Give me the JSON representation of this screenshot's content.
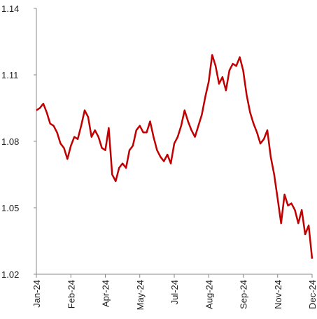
{
  "chart_data": {
    "type": "line",
    "categories": [
      "Jan-24",
      null,
      null,
      null,
      null,
      null,
      null,
      null,
      null,
      null,
      "Feb-24",
      null,
      null,
      null,
      null,
      null,
      null,
      null,
      null,
      null,
      "Apr-24",
      null,
      null,
      null,
      null,
      null,
      null,
      null,
      null,
      null,
      "May-24",
      null,
      null,
      null,
      null,
      null,
      null,
      null,
      null,
      null,
      "Jul-24",
      null,
      null,
      null,
      null,
      null,
      null,
      null,
      null,
      null,
      "Aug-24",
      null,
      null,
      null,
      null,
      null,
      null,
      null,
      null,
      null,
      "Sep-24",
      null,
      null,
      null,
      null,
      null,
      null,
      null,
      null,
      null,
      "Nov-24",
      null,
      null,
      null,
      null,
      null,
      null,
      null,
      null,
      null,
      "Dec-24"
    ],
    "values": [
      1.094,
      1.095,
      1.097,
      1.093,
      1.088,
      1.087,
      1.084,
      1.079,
      1.077,
      1.072,
      1.078,
      1.082,
      1.081,
      1.087,
      1.094,
      1.091,
      1.082,
      1.085,
      1.082,
      1.077,
      1.076,
      1.086,
      1.065,
      1.062,
      1.068,
      1.07,
      1.068,
      1.076,
      1.078,
      1.085,
      1.087,
      1.084,
      1.084,
      1.089,
      1.082,
      1.076,
      1.073,
      1.071,
      1.074,
      1.07,
      1.079,
      1.082,
      1.087,
      1.094,
      1.089,
      1.085,
      1.082,
      1.087,
      1.092,
      1.1,
      1.107,
      1.119,
      1.114,
      1.106,
      1.109,
      1.103,
      1.112,
      1.115,
      1.114,
      1.118,
      1.112,
      1.101,
      1.093,
      1.088,
      1.084,
      1.079,
      1.081,
      1.085,
      1.073,
      1.065,
      1.054,
      1.043,
      1.056,
      1.051,
      1.052,
      1.049,
      1.043,
      1.049,
      1.038,
      1.042,
      1.027
    ],
    "color": "#c00000",
    "ylim": [
      1.02,
      1.14
    ],
    "yticks": [
      1.02,
      1.05,
      1.08,
      1.11,
      1.14
    ],
    "grid": false
  }
}
